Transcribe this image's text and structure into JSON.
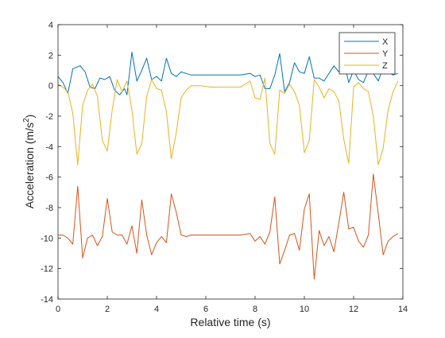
{
  "chart_data": {
    "type": "line",
    "xlabel": "Relative time (s)",
    "ylabel_main": "Acceleration (m/s",
    "ylabel_sup": "2",
    "ylabel_close": ")",
    "xlim": [
      0,
      14
    ],
    "ylim": [
      -14,
      4
    ],
    "x_ticks": [
      0,
      2,
      4,
      6,
      8,
      10,
      12,
      14
    ],
    "y_ticks": [
      -14,
      -12,
      -10,
      -8,
      -6,
      -4,
      -2,
      0,
      2,
      4
    ],
    "grid": false,
    "legend_position": "top-right",
    "series": [
      {
        "name": "X",
        "color": "#0072bd",
        "points": [
          [
            0,
            0.6
          ],
          [
            0.2,
            0.2
          ],
          [
            0.4,
            -0.5
          ],
          [
            0.6,
            1.1
          ],
          [
            0.9,
            1.3
          ],
          [
            1.1,
            0.9
          ],
          [
            1.3,
            -0.1
          ],
          [
            1.5,
            -0.2
          ],
          [
            1.7,
            0.5
          ],
          [
            1.9,
            0.4
          ],
          [
            2.1,
            0.6
          ],
          [
            2.3,
            -0.3
          ],
          [
            2.5,
            -0.6
          ],
          [
            2.7,
            -0.2
          ],
          [
            2.8,
            -0.6
          ],
          [
            3.0,
            2.2
          ],
          [
            3.2,
            0.3
          ],
          [
            3.4,
            1.0
          ],
          [
            3.6,
            1.8
          ],
          [
            3.8,
            0.4
          ],
          [
            4.0,
            0.6
          ],
          [
            4.2,
            0.3
          ],
          [
            4.4,
            1.8
          ],
          [
            4.6,
            0.8
          ],
          [
            4.8,
            0.6
          ],
          [
            5.0,
            0.9
          ],
          [
            5.2,
            0.8
          ],
          [
            5.4,
            0.7
          ],
          [
            5.8,
            0.7
          ],
          [
            6.2,
            0.7
          ],
          [
            6.6,
            0.7
          ],
          [
            7.0,
            0.7
          ],
          [
            7.4,
            0.7
          ],
          [
            7.8,
            0.8
          ],
          [
            8.0,
            0.6
          ],
          [
            8.2,
            0.7
          ],
          [
            8.4,
            -0.2
          ],
          [
            8.6,
            -0.2
          ],
          [
            8.8,
            0.7
          ],
          [
            9.0,
            2.1
          ],
          [
            9.2,
            -0.4
          ],
          [
            9.4,
            0.2
          ],
          [
            9.6,
            1.5
          ],
          [
            9.8,
            0.9
          ],
          [
            10.0,
            0.8
          ],
          [
            10.2,
            1.9
          ],
          [
            10.4,
            0.5
          ],
          [
            10.6,
            0.5
          ],
          [
            10.8,
            0.3
          ],
          [
            11.0,
            0.8
          ],
          [
            11.2,
            1.3
          ],
          [
            11.4,
            0.9
          ],
          [
            11.6,
            1.7
          ],
          [
            11.8,
            0.2
          ],
          [
            12.0,
            1.0
          ],
          [
            12.2,
            0.4
          ],
          [
            12.4,
            0.2
          ],
          [
            12.6,
            1.0
          ],
          [
            12.8,
            0.8
          ],
          [
            13.0,
            0.3
          ],
          [
            13.2,
            1.2
          ],
          [
            13.4,
            0.9
          ],
          [
            13.6,
            0.7
          ],
          [
            13.8,
            0.8
          ]
        ]
      },
      {
        "name": "Y",
        "color": "#d95319",
        "points": [
          [
            0,
            -9.8
          ],
          [
            0.2,
            -9.8
          ],
          [
            0.4,
            -10.0
          ],
          [
            0.6,
            -10.4
          ],
          [
            0.8,
            -6.6
          ],
          [
            1.0,
            -11.3
          ],
          [
            1.2,
            -10.0
          ],
          [
            1.4,
            -9.8
          ],
          [
            1.6,
            -10.5
          ],
          [
            1.8,
            -9.9
          ],
          [
            2.0,
            -7.4
          ],
          [
            2.2,
            -9.6
          ],
          [
            2.4,
            -9.8
          ],
          [
            2.6,
            -9.8
          ],
          [
            2.8,
            -10.4
          ],
          [
            3.0,
            -9.2
          ],
          [
            3.2,
            -11.0
          ],
          [
            3.4,
            -7.5
          ],
          [
            3.6,
            -9.8
          ],
          [
            3.8,
            -11.1
          ],
          [
            4.0,
            -10.3
          ],
          [
            4.2,
            -9.9
          ],
          [
            4.4,
            -10.3
          ],
          [
            4.6,
            -7.1
          ],
          [
            4.8,
            -8.3
          ],
          [
            5.0,
            -9.8
          ],
          [
            5.2,
            -9.9
          ],
          [
            5.4,
            -9.8
          ],
          [
            5.8,
            -9.8
          ],
          [
            6.2,
            -9.8
          ],
          [
            6.6,
            -9.8
          ],
          [
            7.0,
            -9.8
          ],
          [
            7.4,
            -9.8
          ],
          [
            7.8,
            -9.7
          ],
          [
            8.0,
            -10.2
          ],
          [
            8.2,
            -9.9
          ],
          [
            8.4,
            -10.4
          ],
          [
            8.6,
            -9.6
          ],
          [
            8.8,
            -7.3
          ],
          [
            9.0,
            -11.7
          ],
          [
            9.2,
            -10.8
          ],
          [
            9.4,
            -9.8
          ],
          [
            9.6,
            -9.7
          ],
          [
            9.8,
            -10.8
          ],
          [
            10.0,
            -8.1
          ],
          [
            10.2,
            -7.1
          ],
          [
            10.4,
            -12.7
          ],
          [
            10.6,
            -9.5
          ],
          [
            10.8,
            -10.5
          ],
          [
            11.0,
            -9.9
          ],
          [
            11.2,
            -10.9
          ],
          [
            11.4,
            -9.0
          ],
          [
            11.6,
            -7.0
          ],
          [
            11.8,
            -9.4
          ],
          [
            12.0,
            -9.3
          ],
          [
            12.2,
            -10.2
          ],
          [
            12.4,
            -10.6
          ],
          [
            12.6,
            -9.8
          ],
          [
            12.8,
            -5.8
          ],
          [
            13.0,
            -8.4
          ],
          [
            13.2,
            -11.1
          ],
          [
            13.4,
            -10.2
          ],
          [
            13.6,
            -9.9
          ],
          [
            13.8,
            -9.7
          ]
        ]
      },
      {
        "name": "Z",
        "color": "#edb120",
        "points": [
          [
            0,
            0.1
          ],
          [
            0.2,
            -0.1
          ],
          [
            0.4,
            -0.4
          ],
          [
            0.6,
            -1.8
          ],
          [
            0.8,
            -5.2
          ],
          [
            1.0,
            -1.3
          ],
          [
            1.2,
            -0.3
          ],
          [
            1.4,
            0.1
          ],
          [
            1.6,
            -0.7
          ],
          [
            1.8,
            -3.6
          ],
          [
            2.0,
            -4.3
          ],
          [
            2.2,
            -1.6
          ],
          [
            2.4,
            0.4
          ],
          [
            2.6,
            -0.4
          ],
          [
            2.8,
            0.3
          ],
          [
            3.0,
            -1.6
          ],
          [
            3.2,
            -4.5
          ],
          [
            3.4,
            -3.8
          ],
          [
            3.6,
            -0.7
          ],
          [
            3.8,
            0.4
          ],
          [
            4.0,
            -0.2
          ],
          [
            4.2,
            -0.3
          ],
          [
            4.4,
            -1.7
          ],
          [
            4.6,
            -4.8
          ],
          [
            4.8,
            -3.1
          ],
          [
            5.0,
            -0.8
          ],
          [
            5.2,
            -0.3
          ],
          [
            5.4,
            0.0
          ],
          [
            5.8,
            0.0
          ],
          [
            6.2,
            -0.1
          ],
          [
            6.6,
            -0.1
          ],
          [
            7.0,
            -0.1
          ],
          [
            7.4,
            -0.1
          ],
          [
            7.8,
            0.3
          ],
          [
            8.0,
            -0.8
          ],
          [
            8.2,
            -0.9
          ],
          [
            8.4,
            0.5
          ],
          [
            8.6,
            -3.8
          ],
          [
            8.8,
            -4.5
          ],
          [
            9.0,
            -0.3
          ],
          [
            9.2,
            -0.5
          ],
          [
            9.4,
            0.1
          ],
          [
            9.6,
            -0.4
          ],
          [
            9.8,
            -1.3
          ],
          [
            10.0,
            -4.4
          ],
          [
            10.2,
            -3.6
          ],
          [
            10.4,
            0.4
          ],
          [
            10.6,
            -0.1
          ],
          [
            10.8,
            -0.8
          ],
          [
            11.0,
            -0.2
          ],
          [
            11.2,
            -0.4
          ],
          [
            11.4,
            -1.0
          ],
          [
            11.6,
            -3.5
          ],
          [
            11.8,
            -5.1
          ],
          [
            12.0,
            -0.1
          ],
          [
            12.2,
            0.2
          ],
          [
            12.4,
            -0.2
          ],
          [
            12.6,
            -0.4
          ],
          [
            12.8,
            -2.0
          ],
          [
            13.0,
            -5.2
          ],
          [
            13.2,
            -4.1
          ],
          [
            13.4,
            -1.6
          ],
          [
            13.6,
            -0.4
          ],
          [
            13.8,
            0.3
          ]
        ]
      }
    ]
  }
}
